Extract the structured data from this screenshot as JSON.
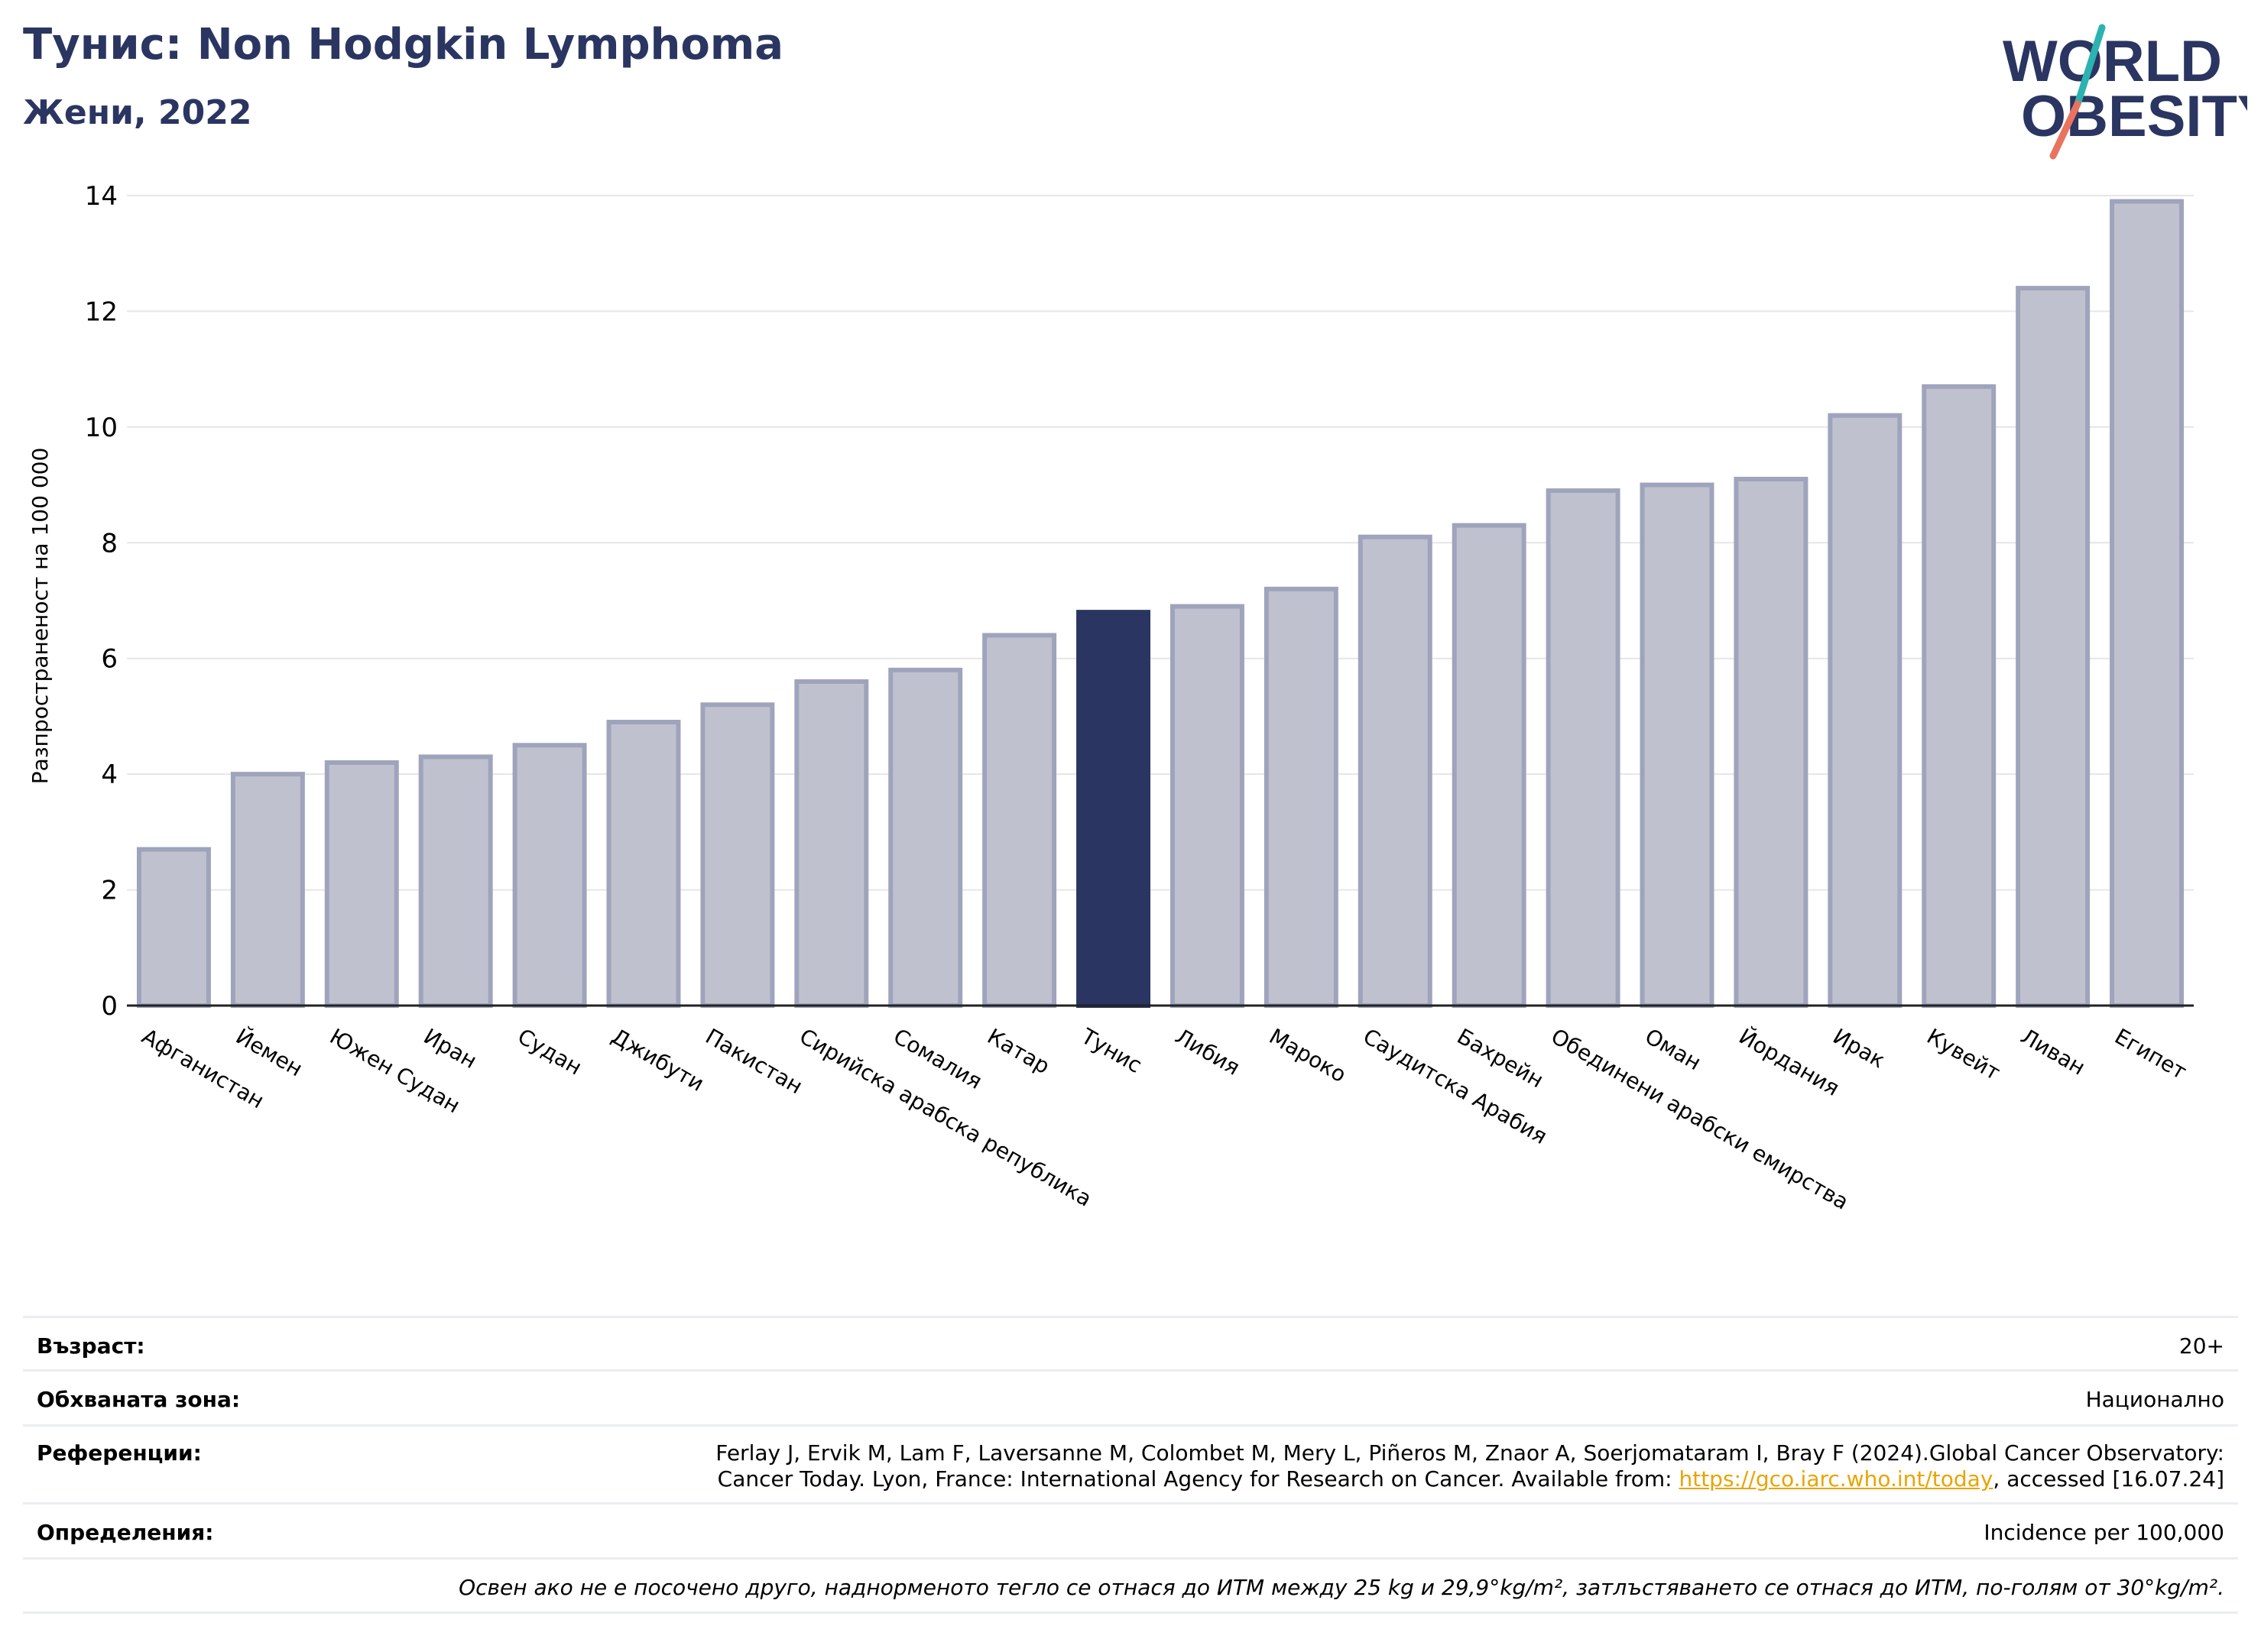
{
  "header": {
    "title": "Тунис: Non Hodgkin Lymphoma",
    "subtitle": "Жени, 2022"
  },
  "logo": {
    "line1": "WORLD",
    "line2": "OBESITY"
  },
  "colors": {
    "bar": "#bfc2ce",
    "bar_edge": "#9fa4bc",
    "highlight": "#2a3561",
    "grid": "#e6e6e6",
    "accent_teal": "#2bb3b1",
    "accent_coral": "#e8735f"
  },
  "chart_data": {
    "type": "bar",
    "ylabel": "Разпространеност  на 100 000",
    "ylim": [
      0,
      14
    ],
    "yticks": [
      0,
      2,
      4,
      6,
      8,
      10,
      12,
      14
    ],
    "grid": true,
    "highlight": "Тунис",
    "categories": [
      "Афганистан",
      "Йемен",
      "Южен Судан",
      "Иран",
      "Судан",
      "Джибути",
      "Пакистан",
      "Сирийска арабска република",
      "Сомалия",
      "Катар",
      "Тунис",
      "Либия",
      "Мароко",
      "Саудитска Арабия",
      "Бахрейн",
      "Обединени арабски емирства",
      "Оман",
      "Йордания",
      "Ирак",
      "Кувейт",
      "Ливан",
      "Египет"
    ],
    "values": [
      2.7,
      4.0,
      4.2,
      4.3,
      4.5,
      4.9,
      5.2,
      5.6,
      5.8,
      6.4,
      6.8,
      6.9,
      7.2,
      8.1,
      8.3,
      8.9,
      9.0,
      9.1,
      10.2,
      10.7,
      12.4,
      13.9
    ]
  },
  "info": {
    "age_label": "Възраст:",
    "age_value": "20+",
    "coverage_label": "Обхваната зона:",
    "coverage_value": "Национално",
    "references_label": "Референции:",
    "references_line1": "Ferlay J, Ervik M, Lam F, Laversanne M, Colombet M, Mery L, Piñeros M, Znaor A, Soerjomataram I, Bray F (2024).Global Cancer Observatory:",
    "references_line2_pre": "Cancer Today. Lyon, France: International Agency for Research on Cancer. Available from: ",
    "references_link": "https://gco.iarc.who.int/today",
    "references_line2_post": ", accessed [16.07.24]",
    "definitions_label": "Определения:",
    "definitions_value": "Incidence per 100,000",
    "note": "Освен ако не е посочено друго, наднорменото тегло се отнася до ИТМ между 25 kg и 29,9°kg/m², затлъстяването се отнася до ИТМ, по-голям от 30°kg/m²."
  }
}
